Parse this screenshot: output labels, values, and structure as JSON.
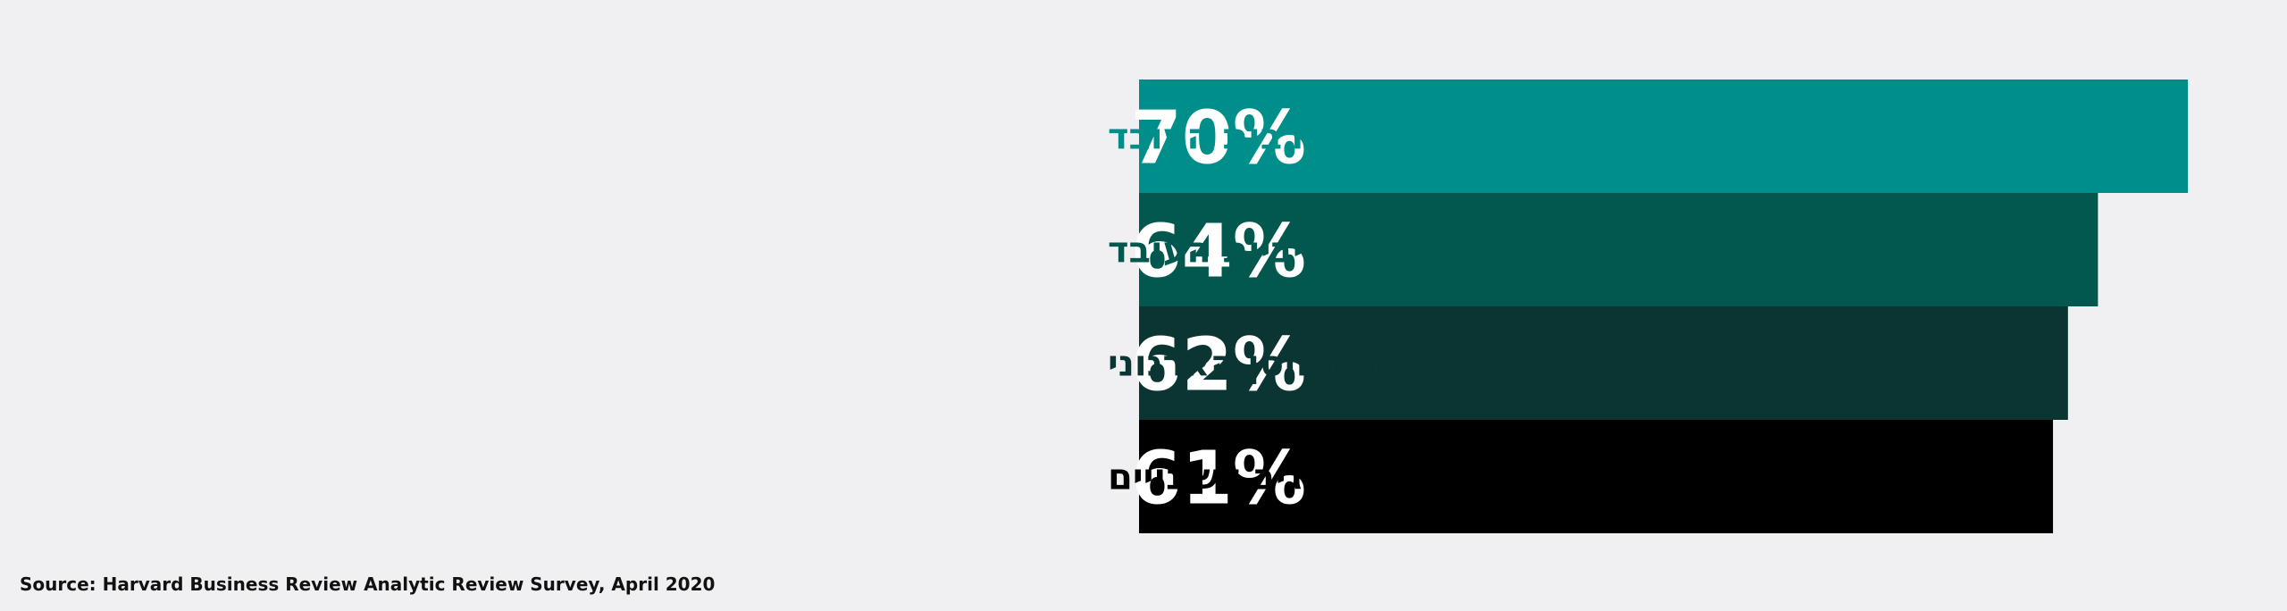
{
  "chart_data": {
    "type": "bar",
    "orientation": "horizontal",
    "categories": [
      "משפרות את מעורבות העובד",
      "מגבירות את פרודוקטיביות העובד",
      "מחזקות את החוסן הארגוני",
      "מגדילות את היכולת להגיב לשינויים"
    ],
    "values": [
      70,
      64,
      62,
      61
    ],
    "value_labels": [
      "70%",
      "64%",
      "62%",
      "61%"
    ],
    "colors": [
      "#008e8a",
      "#02584f",
      "#0a3532",
      "#000000"
    ],
    "label_colors": [
      "#008e8a",
      "#02584f",
      "#0a3532",
      "#000000"
    ],
    "axis_range": [
      0,
      100
    ],
    "grid": false,
    "legend": "none"
  },
  "source": "Source: Harvard Business Review Analytic Review Survey, April 2020"
}
